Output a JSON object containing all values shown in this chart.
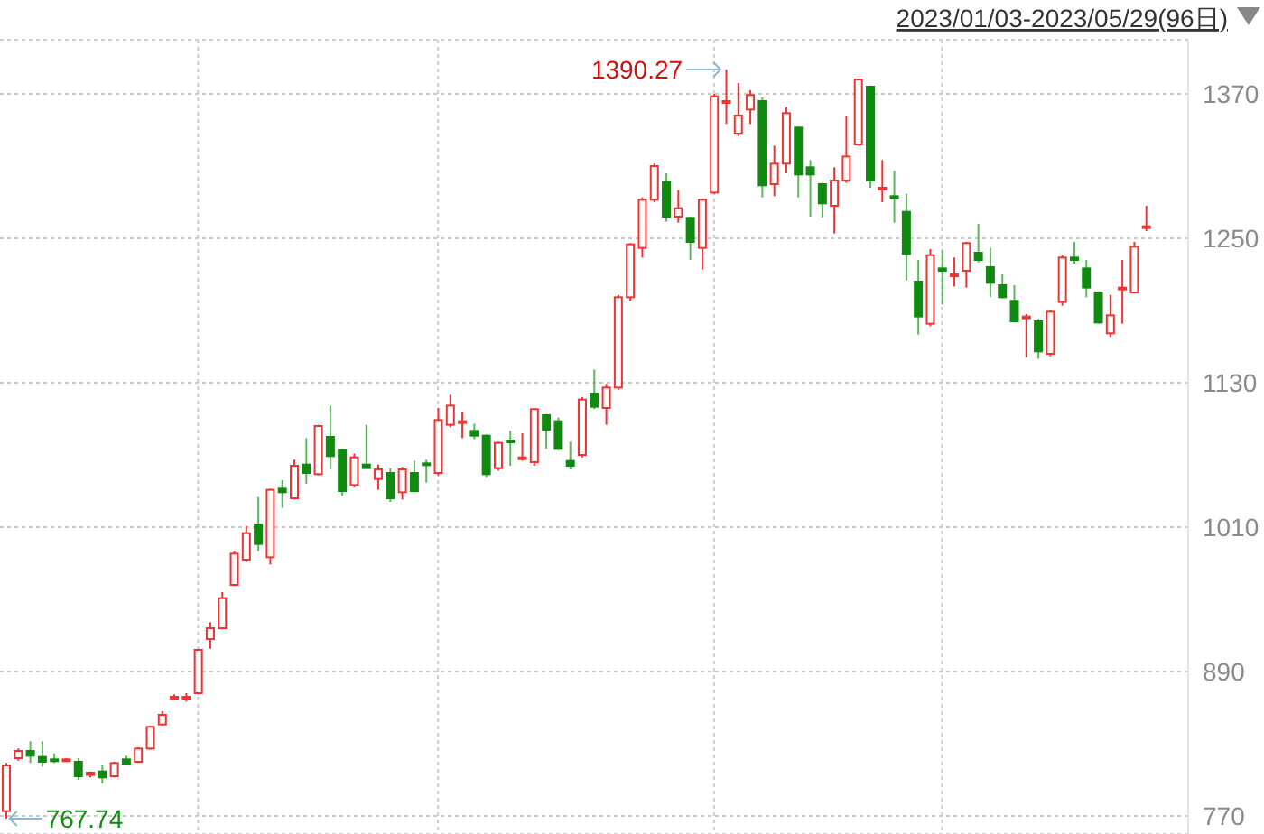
{
  "chart_data": {
    "type": "candlestick",
    "title": "2023/01/03-2023/05/29(96日)",
    "categories": [
      null,
      null,
      null,
      null,
      null,
      null,
      null,
      null,
      null,
      null,
      null,
      null,
      null,
      null,
      null,
      null,
      null,
      null,
      null,
      null,
      null,
      null,
      null,
      null,
      null,
      null,
      null,
      null,
      null,
      null,
      null,
      null,
      null,
      null,
      null,
      null,
      null,
      null,
      null,
      null,
      null,
      null,
      null,
      null,
      null,
      null,
      null,
      null,
      null,
      null,
      null,
      null,
      null,
      null,
      null,
      null,
      null,
      null,
      null,
      null,
      null,
      null,
      null,
      null,
      null,
      null,
      null,
      null,
      null,
      null,
      null,
      null,
      null,
      null,
      null,
      null,
      null,
      null,
      null,
      null,
      null,
      null,
      null,
      null,
      null,
      null,
      null,
      null,
      null,
      null,
      null,
      null,
      null,
      null,
      null,
      null
    ],
    "ohlc": [
      [
        774,
        814,
        767.74,
        812
      ],
      [
        818,
        826,
        816,
        824
      ],
      [
        824,
        832,
        814,
        820
      ],
      [
        819,
        832,
        811,
        815
      ],
      [
        817,
        822,
        814,
        816
      ],
      [
        816,
        818,
        815,
        817
      ],
      [
        815,
        818,
        800,
        803
      ],
      [
        804,
        807,
        802,
        806
      ],
      [
        807,
        812,
        797,
        802
      ],
      [
        803,
        815,
        802,
        814
      ],
      [
        817,
        820,
        812,
        813
      ],
      [
        815,
        827,
        814,
        826
      ],
      [
        826,
        845,
        825,
        844
      ],
      [
        846,
        857,
        845,
        854
      ],
      [
        868,
        871,
        866,
        869
      ],
      [
        868,
        872,
        865,
        869
      ],
      [
        872,
        909,
        871,
        908
      ],
      [
        917,
        931,
        909,
        926
      ],
      [
        926,
        956,
        925,
        951
      ],
      [
        962,
        990,
        961,
        988
      ],
      [
        983,
        1011,
        981,
        1005
      ],
      [
        1012,
        1035,
        990,
        996
      ],
      [
        985,
        1042,
        979,
        1041
      ],
      [
        1042,
        1049,
        1026,
        1039
      ],
      [
        1034,
        1066,
        1033,
        1061
      ],
      [
        1062,
        1084,
        1046,
        1055
      ],
      [
        1054,
        1095,
        1053,
        1094
      ],
      [
        1085,
        1111,
        1058,
        1069
      ],
      [
        1074,
        1075,
        1036,
        1040
      ],
      [
        1045,
        1071,
        1043,
        1068
      ],
      [
        1062,
        1095,
        1059,
        1059
      ],
      [
        1050,
        1062,
        1041,
        1058
      ],
      [
        1055,
        1059,
        1031,
        1034
      ],
      [
        1039,
        1060,
        1033,
        1058
      ],
      [
        1055,
        1065,
        1039,
        1040
      ],
      [
        1063,
        1066,
        1047,
        1062
      ],
      [
        1055,
        1109,
        1053,
        1099
      ],
      [
        1095,
        1120,
        1093,
        1111
      ],
      [
        1097,
        1106,
        1084,
        1098
      ],
      [
        1090,
        1096,
        1083,
        1086
      ],
      [
        1086,
        1087,
        1051,
        1054
      ],
      [
        1059,
        1081,
        1057,
        1080
      ],
      [
        1082,
        1090,
        1061,
        1081
      ],
      [
        1067,
        1088,
        1065,
        1068
      ],
      [
        1064,
        1109,
        1061,
        1108
      ],
      [
        1103,
        1104,
        1075,
        1091
      ],
      [
        1098,
        1101,
        1074,
        1075
      ],
      [
        1065,
        1081,
        1058,
        1061
      ],
      [
        1070,
        1118,
        1068,
        1116
      ],
      [
        1121,
        1141,
        1108,
        1110
      ],
      [
        1109,
        1129,
        1095,
        1126
      ],
      [
        1126,
        1203,
        1124,
        1201
      ],
      [
        1201,
        1246,
        1198,
        1245
      ],
      [
        1242,
        1284,
        1234,
        1282
      ],
      [
        1282,
        1312,
        1280,
        1310
      ],
      [
        1297,
        1304,
        1264,
        1268
      ],
      [
        1268,
        1290,
        1263,
        1275
      ],
      [
        1267,
        1268,
        1232,
        1247
      ],
      [
        1242,
        1283,
        1224,
        1282
      ],
      [
        1288,
        1370,
        1287,
        1368
      ],
      [
        1363,
        1390.27,
        1345,
        1364
      ],
      [
        1337,
        1379,
        1335,
        1352
      ],
      [
        1357,
        1373,
        1345,
        1369
      ],
      [
        1364,
        1367,
        1284,
        1294
      ],
      [
        1295,
        1327,
        1285,
        1312
      ],
      [
        1312,
        1359,
        1304,
        1354
      ],
      [
        1342,
        1343,
        1284,
        1303
      ],
      [
        1309,
        1315,
        1268,
        1303
      ],
      [
        1295,
        1296,
        1267,
        1279
      ],
      [
        1277,
        1309,
        1254,
        1298
      ],
      [
        1298,
        1352,
        1296,
        1318
      ],
      [
        1328,
        1382,
        1327,
        1382
      ],
      [
        1376,
        1377,
        1292,
        1298
      ],
      [
        1291,
        1315,
        1280,
        1292
      ],
      [
        1285,
        1306,
        1263,
        1283
      ],
      [
        1272,
        1287,
        1215,
        1237
      ],
      [
        1214,
        1232,
        1170,
        1185
      ],
      [
        1179,
        1241,
        1177,
        1236
      ],
      [
        1225,
        1240,
        1195,
        1223
      ],
      [
        1219,
        1234,
        1210,
        1220
      ],
      [
        1223,
        1247,
        1209,
        1246
      ],
      [
        1238,
        1262,
        1230,
        1232
      ],
      [
        1226,
        1242,
        1201,
        1213
      ],
      [
        1211,
        1220,
        1200,
        1201
      ],
      [
        1198,
        1211,
        1180,
        1181
      ],
      [
        1184,
        1187,
        1151,
        1185
      ],
      [
        1181,
        1183,
        1150,
        1156
      ],
      [
        1154,
        1190,
        1152,
        1189
      ],
      [
        1197,
        1236,
        1194,
        1234
      ],
      [
        1234,
        1247,
        1229,
        1232
      ],
      [
        1225,
        1232,
        1201,
        1209
      ],
      [
        1205,
        1206,
        1179,
        1180
      ],
      [
        1171,
        1203,
        1168,
        1186
      ],
      [
        1208,
        1232,
        1179,
        1209
      ],
      [
        1205,
        1247,
        1204,
        1243
      ],
      [
        1259,
        1277,
        1256,
        1260
      ]
    ],
    "ylim": [
      755,
      1415
    ],
    "yticks": [
      770,
      890,
      1010,
      1130,
      1250,
      1370
    ],
    "grid": true,
    "tick_labels": "y",
    "annotations": [
      "1390.27",
      "767.74"
    ]
  }
}
